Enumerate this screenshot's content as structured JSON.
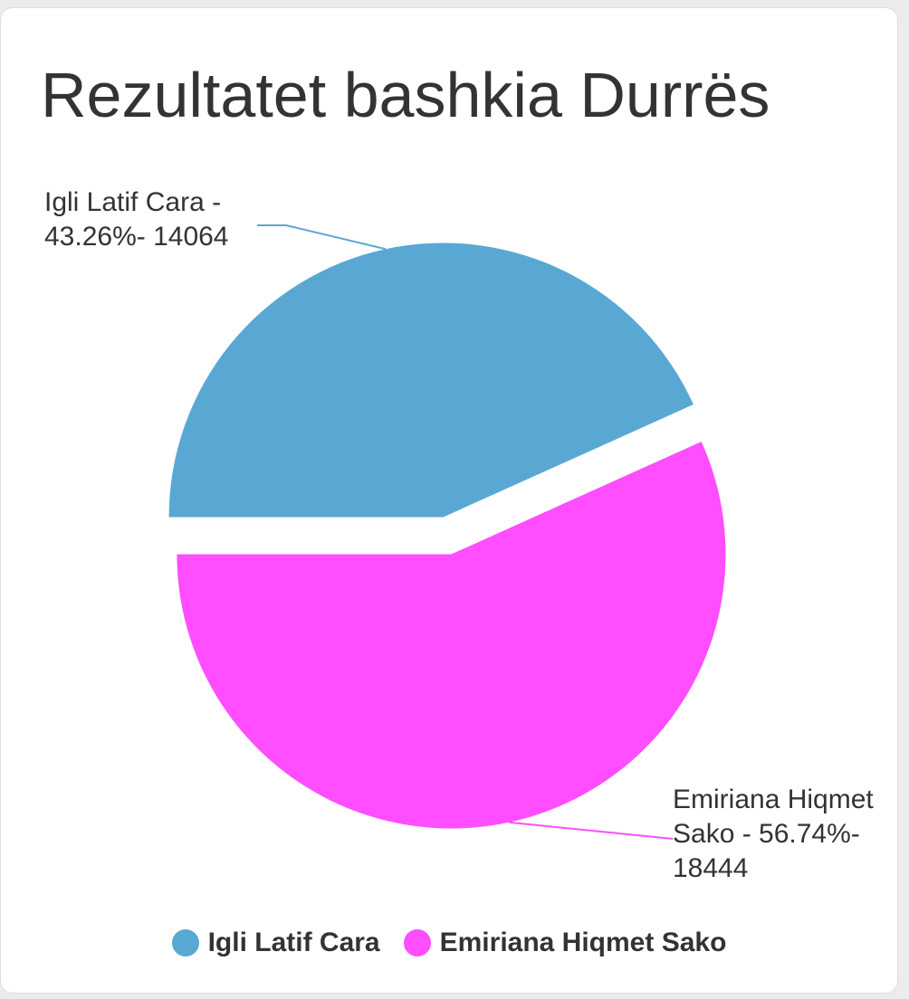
{
  "chart_data": {
    "type": "pie",
    "title": "Rezultatet bashkia Durrës",
    "categories": [
      "Igli Latif Cara",
      "Emiriana Hiqmet Sako"
    ],
    "values": [
      14064,
      18444
    ],
    "value_labels": [
      "Igli Latif Cara - 43.26%- 14064",
      "Emiriana Hiqmet Sako - 56.74%- 18444"
    ],
    "colors": [
      "#59a8d4",
      "#ff4dff"
    ],
    "legend": "bottom"
  }
}
